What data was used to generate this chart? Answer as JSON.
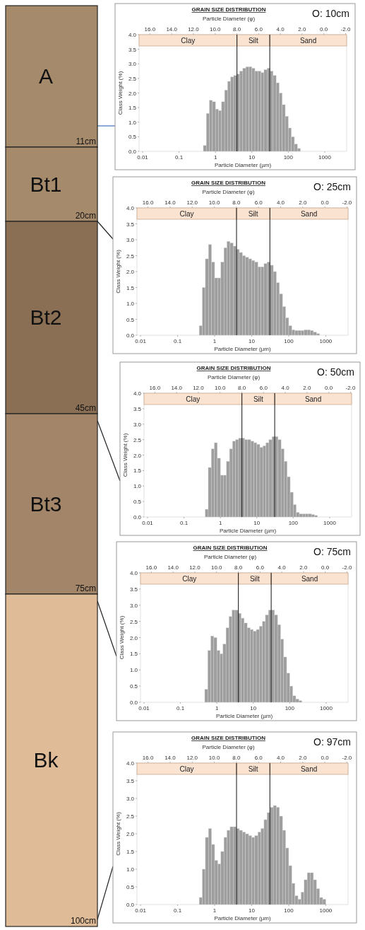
{
  "chart_data": [
    {
      "type": "other",
      "categories": [
        "A",
        "Bt1",
        "Bt2",
        "Bt3",
        "Bk"
      ],
      "colors": [
        "#a68a6c",
        "#a68a6c",
        "#8b6f55",
        "#a38669",
        "#dfbb98"
      ],
      "annotations": [
        "11cm",
        "20cm",
        "45cm",
        "75cm",
        "100cm"
      ]
    },
    {
      "type": "histogram",
      "title": "GRAIN SIZE DISTRIBUTION",
      "xlabel": "Particle Diameter (µm)",
      "x2label": "Particle Diameter (φ)",
      "ylabel": "Class Weight (%)",
      "annotations": [
        "O: 10cm"
      ],
      "log": "x",
      "color": "#9e9e9e",
      "bins": [
        0.464,
        0.562,
        0.681,
        0.825,
        1,
        1.21,
        1.47,
        1.78,
        2.15,
        2.61,
        3.16,
        3.83,
        4.64,
        5.62,
        6.81,
        8.25,
        10,
        12.1,
        14.7,
        17.8,
        21.5,
        26.1,
        31.6,
        38.3,
        46.4,
        56.2,
        68.1,
        82.5,
        100,
        121,
        147,
        178,
        215
      ],
      "values": [
        0.2,
        1.3,
        1.75,
        1.7,
        1.45,
        1.4,
        1.7,
        2.1,
        2.4,
        2.55,
        2.6,
        2.65,
        2.75,
        2.85,
        2.9,
        2.9,
        2.85,
        2.75,
        2.75,
        2.7,
        2.8,
        2.85,
        2.75,
        2.6,
        2.35,
        2.0,
        1.6,
        1.2,
        0.8,
        0.5,
        0.25,
        0.1
      ],
      "xlim": [
        0.008,
        4000
      ],
      "xticks": [
        0.01,
        0.1,
        1,
        10,
        100,
        1000
      ],
      "x2lim": [
        17,
        -2.1
      ],
      "x2ticks": [
        {
          "value": 16,
          "label": "16.0"
        },
        {
          "value": 14,
          "label": "14.0"
        },
        {
          "value": 12,
          "label": "12.0"
        },
        {
          "value": 10,
          "label": "10.0"
        },
        {
          "value": 8,
          "label": "8.0"
        },
        {
          "value": 6,
          "label": "6.0"
        },
        {
          "value": 4,
          "label": "4.0"
        },
        {
          "value": 2,
          "label": "2.0"
        },
        {
          "value": 0,
          "label": "0.0"
        },
        {
          "value": -2,
          "label": "-2.0"
        }
      ],
      "ylim": [
        0,
        4
      ],
      "yticks": [
        {
          "value": 0,
          "label": "0.0"
        },
        {
          "value": 0.5,
          "label": "0.5"
        },
        {
          "value": 1,
          "label": "1.0"
        },
        {
          "value": 1.5,
          "label": "1.5"
        },
        {
          "value": 2,
          "label": "2.0"
        },
        {
          "value": 2.5,
          "label": "2.5"
        },
        {
          "value": 3,
          "label": "3.0"
        },
        {
          "value": 3.5,
          "label": "3.5"
        },
        {
          "value": 4,
          "label": "4.0"
        }
      ],
      "ref_lines": [
        {
          "axis": "x",
          "value": 3.9
        },
        {
          "axis": "x",
          "value": 31
        }
      ],
      "bands": [
        {
          "axis": "x",
          "from": 0.008,
          "to": 3.9,
          "label": "Clay",
          "color": "#fbe3d2"
        },
        {
          "axis": "x",
          "from": 3.9,
          "to": 31,
          "label": "Silt",
          "color": "#fbe3d2"
        },
        {
          "axis": "x",
          "from": 31,
          "to": 4000,
          "label": "Sand",
          "color": "#fbe3d2"
        }
      ]
    },
    {
      "type": "histogram",
      "title": "GRAIN SIZE DISTRIBUTION",
      "xlabel": "Particle Diameter (µm)",
      "x2label": "Particle Diameter (φ)",
      "ylabel": "Class Weight (%)",
      "annotations": [
        "O: 25cm"
      ],
      "log": "x",
      "color": "#9e9e9e",
      "bins": [
        0.383,
        0.464,
        0.562,
        0.681,
        0.825,
        1,
        1.21,
        1.47,
        1.78,
        2.15,
        2.61,
        3.16,
        3.83,
        4.64,
        5.62,
        6.81,
        8.25,
        10,
        12.1,
        14.7,
        17.8,
        21.5,
        26.1,
        31.6,
        38.3,
        46.4,
        56.2,
        68.1,
        82.5,
        100,
        121,
        147,
        178,
        215,
        261,
        316,
        383,
        464,
        562,
        681
      ],
      "values": [
        0.3,
        1.5,
        2.4,
        2.85,
        2.3,
        1.8,
        1.8,
        2.3,
        2.75,
        2.95,
        2.9,
        2.8,
        2.7,
        2.6,
        2.5,
        2.45,
        2.4,
        2.35,
        2.3,
        2.15,
        2.15,
        2.25,
        2.3,
        2.2,
        2.0,
        1.65,
        1.3,
        0.9,
        0.55,
        0.3,
        0.17,
        0.15,
        0.15,
        0.15,
        0.17,
        0.17,
        0.15,
        0.1,
        0.05
      ],
      "xlim": [
        0.008,
        4000
      ],
      "xticks": [
        0.01,
        0.1,
        1,
        10,
        100,
        1000
      ],
      "x2lim": [
        17,
        -2.1
      ],
      "x2ticks": [
        {
          "value": 16,
          "label": "16.0"
        },
        {
          "value": 14,
          "label": "14.0"
        },
        {
          "value": 12,
          "label": "12.0"
        },
        {
          "value": 10,
          "label": "10.0"
        },
        {
          "value": 8,
          "label": "8.0"
        },
        {
          "value": 6,
          "label": "6.0"
        },
        {
          "value": 4,
          "label": "4.0"
        },
        {
          "value": 2,
          "label": "2.0"
        },
        {
          "value": 0,
          "label": "0.0"
        },
        {
          "value": -2,
          "label": "-2.0"
        }
      ],
      "ylim": [
        0,
        4
      ],
      "yticks": [
        {
          "value": 0,
          "label": "0.0"
        },
        {
          "value": 0.5,
          "label": "0.5"
        },
        {
          "value": 1,
          "label": "1.0"
        },
        {
          "value": 1.5,
          "label": "1.5"
        },
        {
          "value": 2,
          "label": "2.0"
        },
        {
          "value": 2.5,
          "label": "2.5"
        },
        {
          "value": 3,
          "label": "3.0"
        },
        {
          "value": 3.5,
          "label": "3.5"
        },
        {
          "value": 4,
          "label": "4.0"
        }
      ],
      "ref_lines": [
        {
          "axis": "x",
          "value": 3.9
        },
        {
          "axis": "x",
          "value": 31
        }
      ],
      "bands": [
        {
          "axis": "x",
          "from": 0.008,
          "to": 3.9,
          "label": "Clay",
          "color": "#fbe3d2"
        },
        {
          "axis": "x",
          "from": 3.9,
          "to": 31,
          "label": "Silt",
          "color": "#fbe3d2"
        },
        {
          "axis": "x",
          "from": 31,
          "to": 4000,
          "label": "Sand",
          "color": "#fbe3d2"
        }
      ]
    },
    {
      "type": "histogram",
      "title": "GRAIN SIZE DISTRIBUTION",
      "xlabel": "Particle Diameter (µm)",
      "x2label": "Particle Diameter (φ)",
      "ylabel": "Class Weight (%)",
      "annotations": [
        "O: 50cm"
      ],
      "log": "x",
      "color": "#9e9e9e",
      "bins": [
        0.383,
        0.464,
        0.562,
        0.681,
        0.825,
        1,
        1.21,
        1.47,
        1.78,
        2.15,
        2.61,
        3.16,
        3.83,
        4.64,
        5.62,
        6.81,
        8.25,
        10,
        12.1,
        14.7,
        17.8,
        21.5,
        26.1,
        31.6,
        38.3,
        46.4,
        56.2,
        68.1,
        82.5,
        100,
        121,
        147,
        178,
        215,
        261,
        316,
        383,
        464
      ],
      "values": [
        0.25,
        1.6,
        2.2,
        2.4,
        1.9,
        1.35,
        1.35,
        1.8,
        2.2,
        2.45,
        2.5,
        2.55,
        2.55,
        2.5,
        2.5,
        2.45,
        2.4,
        2.35,
        2.25,
        2.3,
        2.4,
        2.5,
        2.6,
        2.6,
        2.5,
        2.2,
        1.8,
        1.3,
        0.8,
        0.4,
        0.15,
        0.1,
        0.1,
        0.1,
        0.1,
        0.08,
        0.05
      ],
      "xlim": [
        0.008,
        4000
      ],
      "xticks": [
        0.01,
        0.1,
        1,
        10,
        100,
        1000
      ],
      "x2lim": [
        17,
        -2.1
      ],
      "x2ticks": [
        {
          "value": 16,
          "label": "16.0"
        },
        {
          "value": 14,
          "label": "14.0"
        },
        {
          "value": 12,
          "label": "12.0"
        },
        {
          "value": 10,
          "label": "10.0"
        },
        {
          "value": 8,
          "label": "8.0"
        },
        {
          "value": 6,
          "label": "6.0"
        },
        {
          "value": 4,
          "label": "4.0"
        },
        {
          "value": 2,
          "label": "2.0"
        },
        {
          "value": 0,
          "label": "0.0"
        },
        {
          "value": -2,
          "label": "-2.0"
        }
      ],
      "ylim": [
        0,
        4
      ],
      "yticks": [
        {
          "value": 0,
          "label": "0.0"
        },
        {
          "value": 0.5,
          "label": "0.5"
        },
        {
          "value": 1,
          "label": "1.0"
        },
        {
          "value": 1.5,
          "label": "1.5"
        },
        {
          "value": 2,
          "label": "2.0"
        },
        {
          "value": 2.5,
          "label": "2.5"
        },
        {
          "value": 3,
          "label": "3.0"
        },
        {
          "value": 3.5,
          "label": "3.5"
        },
        {
          "value": 4,
          "label": "4.0"
        }
      ],
      "ref_lines": [
        {
          "axis": "x",
          "value": 3.9
        },
        {
          "axis": "x",
          "value": 31
        }
      ],
      "bands": [
        {
          "axis": "x",
          "from": 0.008,
          "to": 3.9,
          "label": "Clay",
          "color": "#fbe3d2"
        },
        {
          "axis": "x",
          "from": 3.9,
          "to": 31,
          "label": "Silt",
          "color": "#fbe3d2"
        },
        {
          "axis": "x",
          "from": 31,
          "to": 4000,
          "label": "Sand",
          "color": "#fbe3d2"
        }
      ]
    },
    {
      "type": "histogram",
      "title": "GRAIN SIZE DISTRIBUTION",
      "xlabel": "Particle Diameter (µm)",
      "x2label": "Particle Diameter (φ)",
      "ylabel": "Class Weight (%)",
      "annotations": [
        "O: 75cm"
      ],
      "log": "x",
      "color": "#9e9e9e",
      "bins": [
        0.464,
        0.562,
        0.681,
        0.825,
        1,
        1.21,
        1.47,
        1.78,
        2.15,
        2.61,
        3.16,
        3.83,
        4.64,
        5.62,
        6.81,
        8.25,
        10,
        12.1,
        14.7,
        17.8,
        21.5,
        26.1,
        31.6,
        38.3,
        46.4,
        56.2,
        68.1,
        82.5,
        100,
        121,
        147,
        178,
        215
      ],
      "values": [
        0.4,
        1.6,
        2.05,
        2.0,
        1.6,
        1.5,
        1.8,
        2.3,
        2.65,
        2.85,
        2.85,
        2.75,
        2.6,
        2.45,
        2.3,
        2.25,
        2.2,
        2.25,
        2.35,
        2.5,
        2.7,
        2.85,
        2.85,
        2.7,
        2.4,
        1.95,
        1.4,
        0.9,
        0.5,
        0.2,
        0.1,
        0.05
      ],
      "xlim": [
        0.008,
        4000
      ],
      "xticks": [
        0.01,
        0.1,
        1,
        10,
        100,
        1000
      ],
      "x2lim": [
        17,
        -2.1
      ],
      "x2ticks": [
        {
          "value": 16,
          "label": "16.0"
        },
        {
          "value": 14,
          "label": "14.0"
        },
        {
          "value": 12,
          "label": "12.0"
        },
        {
          "value": 10,
          "label": "10.0"
        },
        {
          "value": 8,
          "label": "8.0"
        },
        {
          "value": 6,
          "label": "6.0"
        },
        {
          "value": 4,
          "label": "4.0"
        },
        {
          "value": 2,
          "label": "2.0"
        },
        {
          "value": 0,
          "label": "0.0"
        },
        {
          "value": -2,
          "label": "-2.0"
        }
      ],
      "ylim": [
        0,
        4
      ],
      "yticks": [
        {
          "value": 0,
          "label": "0.0"
        },
        {
          "value": 0.5,
          "label": "0.5"
        },
        {
          "value": 1,
          "label": "1.0"
        },
        {
          "value": 1.5,
          "label": "1.5"
        },
        {
          "value": 2,
          "label": "2.0"
        },
        {
          "value": 2.5,
          "label": "2.5"
        },
        {
          "value": 3,
          "label": "3.0"
        },
        {
          "value": 3.5,
          "label": "3.5"
        },
        {
          "value": 4,
          "label": "4.0"
        }
      ],
      "ref_lines": [
        {
          "axis": "x",
          "value": 3.9
        },
        {
          "axis": "x",
          "value": 31
        }
      ],
      "bands": [
        {
          "axis": "x",
          "from": 0.008,
          "to": 3.9,
          "label": "Clay",
          "color": "#fbe3d2"
        },
        {
          "axis": "x",
          "from": 3.9,
          "to": 31,
          "label": "Silt",
          "color": "#fbe3d2"
        },
        {
          "axis": "x",
          "from": 31,
          "to": 4000,
          "label": "Sand",
          "color": "#fbe3d2"
        }
      ]
    },
    {
      "type": "histogram",
      "title": "GRAIN SIZE DISTRIBUTION",
      "xlabel": "Particle Diameter (µm)",
      "x2label": "Particle Diameter (φ)",
      "ylabel": "Class Weight (%)",
      "annotations": [
        "O: 97cm"
      ],
      "log": "x",
      "color": "#9e9e9e",
      "bins": [
        0.383,
        0.464,
        0.562,
        0.681,
        0.825,
        1,
        1.21,
        1.47,
        1.78,
        2.15,
        2.61,
        3.16,
        3.83,
        4.64,
        5.62,
        6.81,
        8.25,
        10,
        12.1,
        14.7,
        17.8,
        21.5,
        26.1,
        31.6,
        38.3,
        46.4,
        56.2,
        68.1,
        82.5,
        100,
        121,
        147,
        178,
        215,
        261,
        316,
        383,
        464,
        562,
        681,
        825,
        1000
      ],
      "values": [
        0.2,
        1.0,
        1.9,
        2.15,
        1.7,
        1.25,
        1.15,
        1.5,
        1.9,
        2.1,
        2.2,
        2.2,
        2.15,
        2.1,
        2.05,
        2.0,
        1.95,
        1.9,
        1.95,
        2.05,
        2.15,
        2.4,
        2.6,
        2.75,
        2.8,
        2.75,
        2.5,
        2.1,
        1.6,
        1.1,
        0.6,
        0.25,
        0.15,
        0.35,
        0.7,
        0.9,
        0.9,
        0.7,
        0.45,
        0.2,
        0.15
      ],
      "xlim": [
        0.008,
        4000
      ],
      "xticks": [
        0.01,
        0.1,
        1,
        10,
        100,
        1000
      ],
      "x2lim": [
        17,
        -2.1
      ],
      "x2ticks": [
        {
          "value": 16,
          "label": "16.0"
        },
        {
          "value": 14,
          "label": "14.0"
        },
        {
          "value": 12,
          "label": "12.0"
        },
        {
          "value": 10,
          "label": "10.0"
        },
        {
          "value": 8,
          "label": "8.0"
        },
        {
          "value": 6,
          "label": "6.0"
        },
        {
          "value": 4,
          "label": "4.0"
        },
        {
          "value": 2,
          "label": "2.0"
        },
        {
          "value": 0,
          "label": "0.0"
        },
        {
          "value": -2,
          "label": "-2.0"
        }
      ],
      "ylim": [
        0,
        4
      ],
      "yticks": [
        {
          "value": 0,
          "label": "0.0"
        },
        {
          "value": 0.5,
          "label": "0.5"
        },
        {
          "value": 1,
          "label": "1.0"
        },
        {
          "value": 1.5,
          "label": "1.5"
        },
        {
          "value": 2,
          "label": "2.0"
        },
        {
          "value": 2.5,
          "label": "2.5"
        },
        {
          "value": 3,
          "label": "3.0"
        },
        {
          "value": 3.5,
          "label": "3.5"
        },
        {
          "value": 4,
          "label": "4.0"
        }
      ],
      "ref_lines": [
        {
          "axis": "x",
          "value": 3.9
        },
        {
          "axis": "x",
          "value": 31
        }
      ],
      "bands": [
        {
          "axis": "x",
          "from": 0.008,
          "to": 3.9,
          "label": "Clay",
          "color": "#fbe3d2"
        },
        {
          "axis": "x",
          "from": 3.9,
          "to": 31,
          "label": "Silt",
          "color": "#fbe3d2"
        },
        {
          "axis": "x",
          "from": 31,
          "to": 4000,
          "label": "Sand",
          "color": "#fbe3d2"
        }
      ]
    }
  ]
}
